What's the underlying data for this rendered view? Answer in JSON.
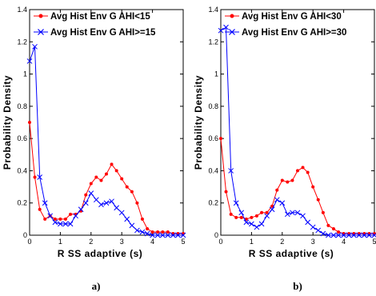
{
  "chart_data": [
    {
      "type": "line",
      "caption": "a)",
      "xlabel": "R SS adaptive (s)",
      "ylabel": "Probability Density",
      "xlim": [
        0,
        5
      ],
      "ylim": [
        0,
        1.4
      ],
      "xticks": [
        "0",
        "1",
        "2",
        "3",
        "4",
        "5"
      ],
      "yticks": [
        "0",
        "0.2",
        "0.4",
        "0.6",
        "0.8",
        "1",
        "1.2",
        "1.4"
      ],
      "grid": false,
      "legend_position": "top-left",
      "series": [
        {
          "name": "Avg Hist Env G AHI<15",
          "color": "#ff0000",
          "marker": "dot",
          "x": [
            0.0,
            0.17,
            0.33,
            0.5,
            0.67,
            0.83,
            1.0,
            1.17,
            1.33,
            1.5,
            1.67,
            1.83,
            2.0,
            2.17,
            2.33,
            2.5,
            2.67,
            2.83,
            3.0,
            3.17,
            3.33,
            3.5,
            3.67,
            3.83,
            4.0,
            4.17,
            4.33,
            4.5,
            4.67,
            4.83,
            5.0
          ],
          "y": [
            0.7,
            0.36,
            0.16,
            0.1,
            0.12,
            0.1,
            0.1,
            0.1,
            0.13,
            0.13,
            0.15,
            0.25,
            0.32,
            0.36,
            0.34,
            0.38,
            0.44,
            0.4,
            0.35,
            0.3,
            0.27,
            0.2,
            0.1,
            0.04,
            0.02,
            0.02,
            0.02,
            0.02,
            0.01,
            0.01,
            0.01
          ]
        },
        {
          "name": "Avg Hist Env G AHI>=15",
          "color": "#0000ff",
          "marker": "x",
          "x": [
            0.0,
            0.17,
            0.33,
            0.5,
            0.67,
            0.83,
            1.0,
            1.17,
            1.33,
            1.5,
            1.67,
            1.83,
            2.0,
            2.17,
            2.33,
            2.5,
            2.67,
            2.83,
            3.0,
            3.17,
            3.33,
            3.5,
            3.67,
            3.83,
            4.0,
            4.17,
            4.33,
            4.5,
            4.67,
            4.83,
            5.0
          ],
          "y": [
            1.08,
            1.17,
            0.36,
            0.2,
            0.12,
            0.08,
            0.07,
            0.07,
            0.07,
            0.12,
            0.16,
            0.2,
            0.26,
            0.22,
            0.19,
            0.2,
            0.21,
            0.17,
            0.14,
            0.1,
            0.06,
            0.03,
            0.02,
            0.01,
            0.0,
            0.0,
            0.0,
            0.0,
            0.0,
            0.0,
            0.0
          ]
        }
      ]
    },
    {
      "type": "line",
      "caption": "b)",
      "xlabel": "R SS adaptive (s)",
      "ylabel": "Probability Density",
      "xlim": [
        0,
        5
      ],
      "ylim": [
        0,
        1.4
      ],
      "xticks": [
        "0",
        "1",
        "2",
        "3",
        "4",
        "5"
      ],
      "yticks": [
        "0",
        "0.2",
        "0.4",
        "0.6",
        "0.8",
        "1",
        "1.2",
        "1.4"
      ],
      "grid": false,
      "legend_position": "top-left",
      "series": [
        {
          "name": "Avg Hist Env G AHI<30",
          "color": "#ff0000",
          "marker": "dot",
          "x": [
            0.0,
            0.17,
            0.33,
            0.5,
            0.67,
            0.83,
            1.0,
            1.17,
            1.33,
            1.5,
            1.67,
            1.83,
            2.0,
            2.17,
            2.33,
            2.5,
            2.67,
            2.83,
            3.0,
            3.17,
            3.33,
            3.5,
            3.67,
            3.83,
            4.0,
            4.17,
            4.33,
            4.5,
            4.67,
            4.83,
            5.0
          ],
          "y": [
            0.6,
            0.27,
            0.13,
            0.11,
            0.11,
            0.1,
            0.11,
            0.12,
            0.14,
            0.14,
            0.18,
            0.28,
            0.34,
            0.33,
            0.34,
            0.4,
            0.42,
            0.39,
            0.3,
            0.22,
            0.14,
            0.06,
            0.04,
            0.02,
            0.01,
            0.01,
            0.01,
            0.01,
            0.01,
            0.01,
            0.01
          ]
        },
        {
          "name": "Avg Hist Env G AHI>=30",
          "color": "#0000ff",
          "marker": "x",
          "x": [
            0.0,
            0.17,
            0.33,
            0.5,
            0.67,
            0.83,
            1.0,
            1.17,
            1.33,
            1.5,
            1.67,
            1.83,
            2.0,
            2.17,
            2.33,
            2.5,
            2.67,
            2.83,
            3.0,
            3.17,
            3.33,
            3.5,
            3.67,
            3.83,
            4.0,
            4.17,
            4.33,
            4.5,
            4.67,
            4.83,
            5.0
          ],
          "y": [
            1.27,
            1.29,
            0.4,
            0.2,
            0.14,
            0.08,
            0.07,
            0.05,
            0.07,
            0.12,
            0.16,
            0.22,
            0.2,
            0.13,
            0.14,
            0.14,
            0.12,
            0.08,
            0.05,
            0.03,
            0.01,
            0.0,
            0.0,
            0.0,
            0.0,
            0.0,
            0.0,
            0.0,
            0.0,
            0.0,
            0.0
          ]
        }
      ]
    }
  ]
}
